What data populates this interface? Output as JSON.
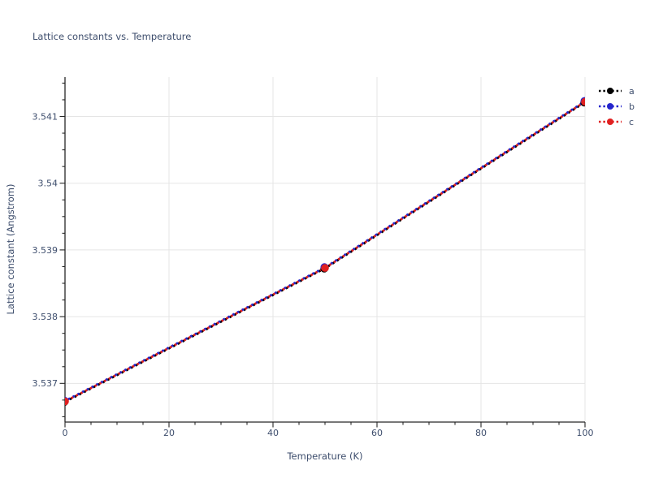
{
  "page": {
    "background": "#ffffff",
    "text_color": "#3e4e6d",
    "grid_color": "#e5e5e5",
    "axis_color": "#262626"
  },
  "chart_data": {
    "type": "line",
    "title": "Lattice constants vs. Temperature",
    "xlabel": "Temperature (K)",
    "ylabel": "Lattice constant (Angstrom)",
    "x": [
      0,
      50,
      100
    ],
    "series": [
      {
        "name": "a",
        "color": "#000000",
        "values": [
          3.53673,
          3.53873,
          3.54122
        ]
      },
      {
        "name": "b",
        "color": "#2424cc",
        "values": [
          3.53673,
          3.53873,
          3.54122
        ]
      },
      {
        "name": "c",
        "color": "#e02020",
        "values": [
          3.53673,
          3.53873,
          3.54122
        ]
      }
    ],
    "line_style": "dotted",
    "marker": "circle",
    "grid": true,
    "legend_position": "right-top",
    "legend_labels": [
      "a",
      "b",
      "c"
    ],
    "xlim": [
      0,
      100
    ],
    "ylim": [
      3.53642,
      3.54159
    ],
    "xticks": {
      "values": [
        0,
        20,
        40,
        60,
        80,
        100
      ],
      "labels": [
        "0",
        "20",
        "40",
        "60",
        "80",
        "100"
      ],
      "minor_step": 5
    },
    "yticks": {
      "values": [
        3.537,
        3.538,
        3.539,
        3.54,
        3.541
      ],
      "labels": [
        "3.537",
        "3.538",
        "3.539",
        "3.54",
        "3.541"
      ],
      "minor_step": 0.00025
    }
  }
}
